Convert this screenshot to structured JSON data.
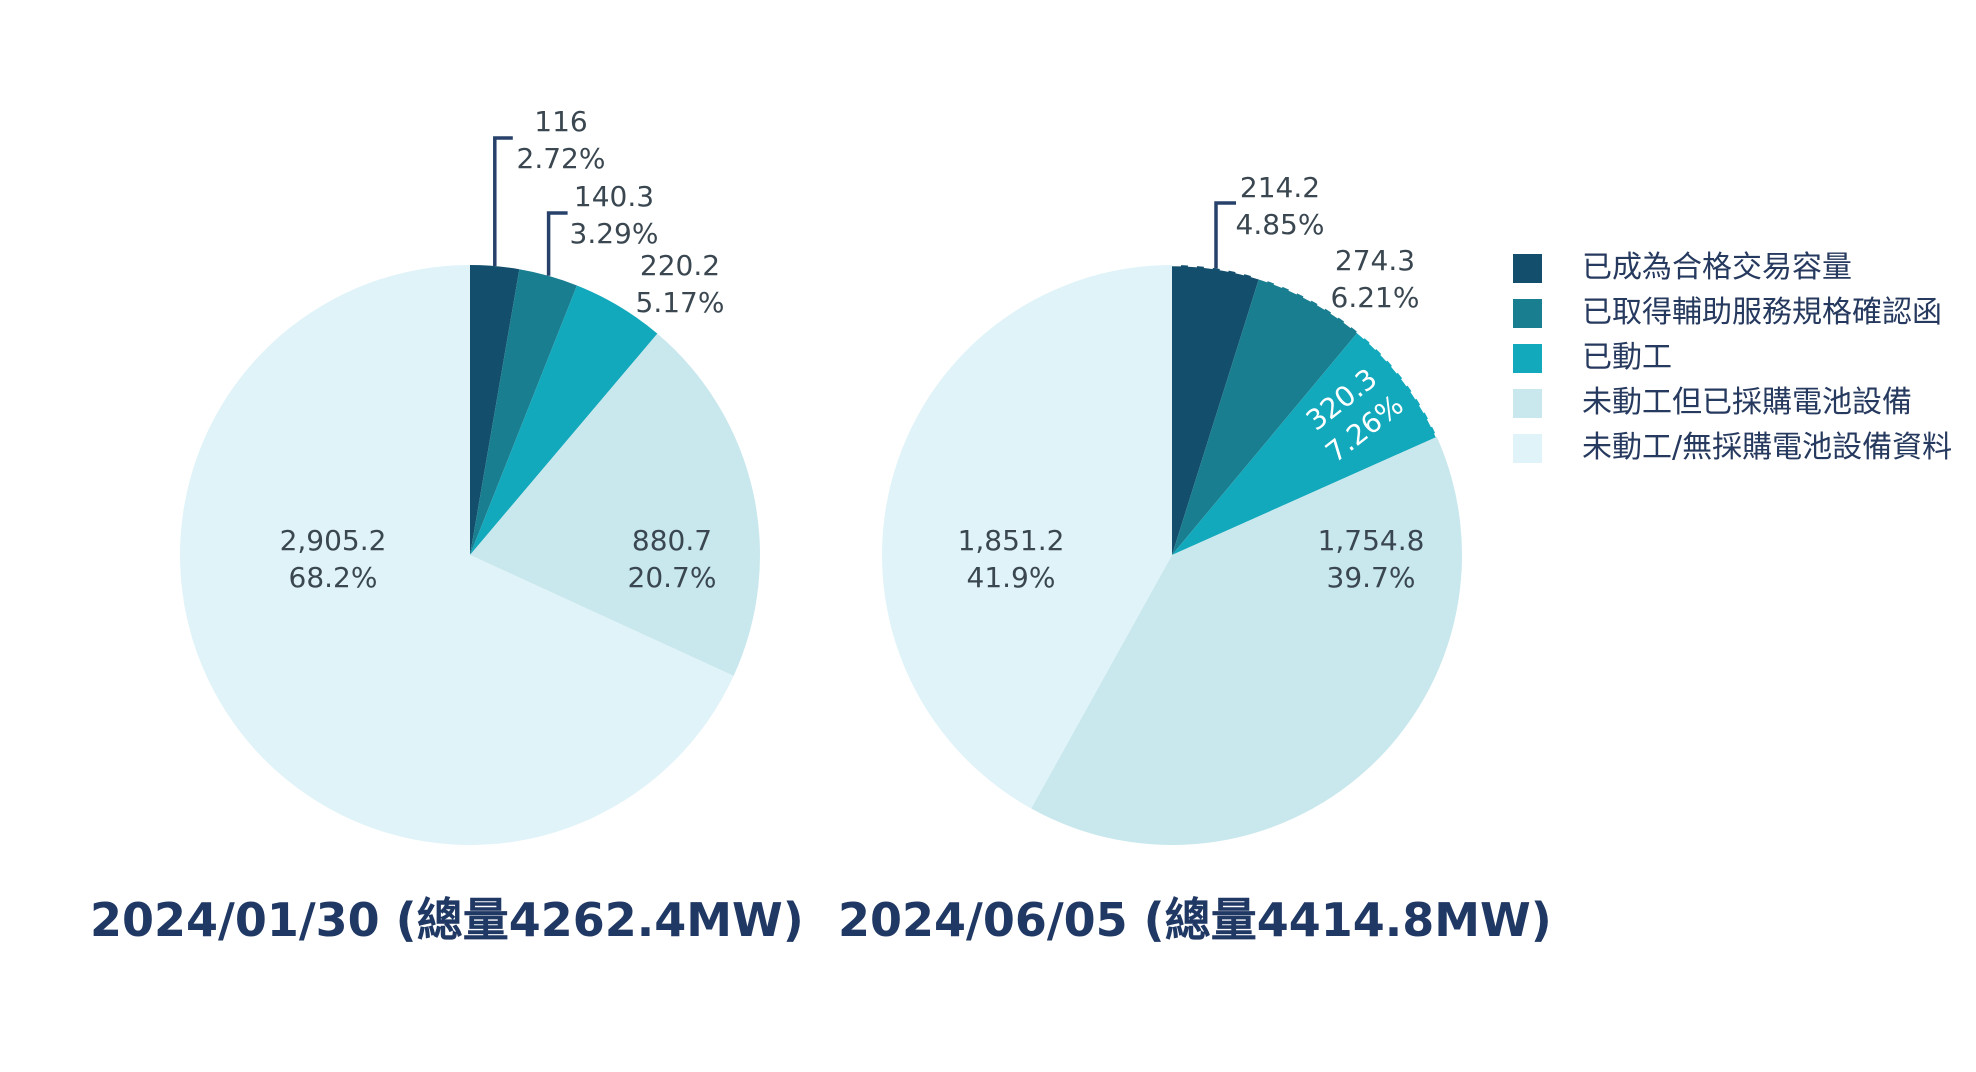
{
  "palette": {
    "background": "#FFFFFF",
    "slice_colors": [
      "#134F6C",
      "#1A7E91",
      "#12A9BC",
      "#C8E8EE",
      "#E0F3F8"
    ],
    "label_text": "#3A4750",
    "inside_label_text": "#FFFFFF",
    "title_text": "#203864",
    "legend_text": "#26395E",
    "leader_line": "#27416B"
  },
  "legend": {
    "items": [
      {
        "name": "qualified-trading-capacity",
        "label": "已成為合格交易容量",
        "color": "#134F6C"
      },
      {
        "name": "ancillary-service-spec-confirmed",
        "label": "已取得輔助服務規格確認函",
        "color": "#1A7E91"
      },
      {
        "name": "construction-started",
        "label": "已動工",
        "color": "#12A9BC"
      },
      {
        "name": "not-started-battery-procured",
        "label": "未動工但已採購電池設備",
        "color": "#C8E8EE"
      },
      {
        "name": "not-started-no-battery-data",
        "label": "未動工/無採購電池設備資料",
        "color": "#E0F3F8"
      }
    ]
  },
  "chart_data": [
    {
      "type": "pie",
      "title": "2024/01/30 (總量4262.4MW)",
      "date": "2024/01/30",
      "total_mw": 4262.4,
      "unit": "MW",
      "start_angle": "12-oclock",
      "direction": "clockwise",
      "legend_position": "right",
      "categories": [
        "已成為合格交易容量",
        "已取得輔助服務規格確認函",
        "已動工",
        "未動工但已採購電池設備",
        "未動工/無採購電池設備資料"
      ],
      "values": [
        116,
        140.3,
        220.2,
        880.7,
        2905.2
      ],
      "value_labels": [
        "116",
        "140.3",
        "220.2",
        "880.7",
        "2,905.2"
      ],
      "percent_labels": [
        "2.72%",
        "3.29%",
        "5.17%",
        "20.7%",
        "68.2%"
      ]
    },
    {
      "type": "pie",
      "title": "2024/06/05 (總量4414.8MW)",
      "date": "2024/06/05",
      "total_mw": 4414.8,
      "unit": "MW",
      "start_angle": "12-oclock",
      "direction": "clockwise",
      "legend_position": "right",
      "categories": [
        "已成為合格交易容量",
        "已取得輔助服務規格確認函",
        "已動工",
        "未動工但已採購電池設備",
        "未動工/無採購電池設備資料"
      ],
      "values": [
        214.2,
        274.3,
        320.3,
        1754.8,
        1851.2
      ],
      "value_labels": [
        "214.2",
        "274.3",
        "320.3",
        "1,754.8",
        "1,851.2"
      ],
      "percent_labels": [
        "4.85%",
        "6.21%",
        "7.26%",
        "39.7%",
        "41.9%"
      ]
    }
  ]
}
